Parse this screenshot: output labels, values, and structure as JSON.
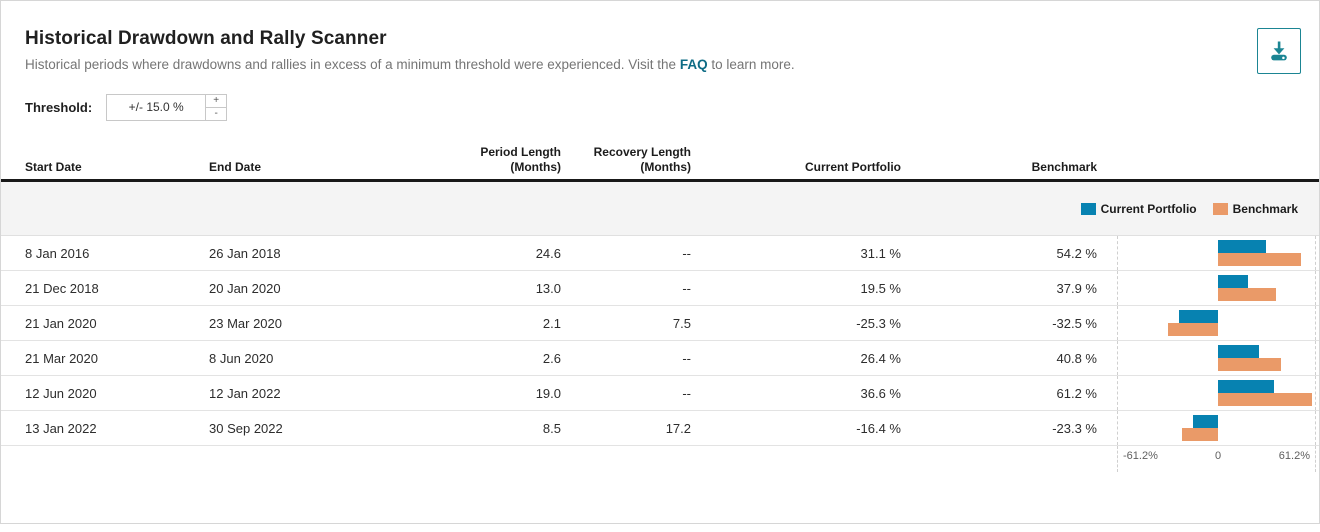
{
  "header": {
    "title": "Historical Drawdown and Rally Scanner",
    "subtitle_before": "Historical periods where drawdowns and rallies in excess of a minimum threshold were experienced. Visit the ",
    "faq_link_text": "FAQ",
    "subtitle_after": " to learn more."
  },
  "threshold": {
    "label": "Threshold:",
    "value": "+/- 15.0 %",
    "increment": "+",
    "decrement": "-"
  },
  "table": {
    "columns": [
      {
        "id": "start-date",
        "line1": "Start Date",
        "line2": "",
        "align": "left"
      },
      {
        "id": "end-date",
        "line1": "End Date",
        "line2": "",
        "align": "left"
      },
      {
        "id": "period-length",
        "line1": "Period Length",
        "line2": "(Months)",
        "align": "right"
      },
      {
        "id": "recovery-length",
        "line1": "Recovery Length",
        "line2": "(Months)",
        "align": "right"
      },
      {
        "id": "current-portfolio",
        "line1": "Current Portfolio",
        "line2": "",
        "align": "right"
      },
      {
        "id": "benchmark",
        "line1": "Benchmark",
        "line2": "",
        "align": "right"
      }
    ],
    "rows": [
      [
        "8 Jan 2016",
        "26 Jan 2018",
        "24.6",
        "--",
        "31.1 %",
        "54.2 %"
      ],
      [
        "21 Dec 2018",
        "20 Jan 2020",
        "13.0",
        "--",
        "19.5 %",
        "37.9 %"
      ],
      [
        "21 Jan 2020",
        "23 Mar 2020",
        "2.1",
        "7.5",
        "-25.3 %",
        "-32.5 %"
      ],
      [
        "21 Mar 2020",
        "8 Jun 2020",
        "2.6",
        "--",
        "26.4 %",
        "40.8 %"
      ],
      [
        "12 Jun 2020",
        "12 Jan 2022",
        "19.0",
        "--",
        "36.6 %",
        "61.2 %"
      ],
      [
        "13 Jan 2022",
        "30 Sep 2022",
        "8.5",
        "17.2",
        "-16.4 %",
        "-23.3 %"
      ]
    ]
  },
  "chart_data": {
    "type": "bar",
    "orientation": "horizontal",
    "categories": [
      "8 Jan 2016 - 26 Jan 2018",
      "21 Dec 2018 - 20 Jan 2020",
      "21 Jan 2020 - 23 Mar 2020",
      "21 Mar 2020 - 8 Jun 2020",
      "12 Jun 2020 - 12 Jan 2022",
      "13 Jan 2022 - 30 Sep 2022"
    ],
    "series": [
      {
        "name": "Current Portfolio",
        "color": "#0782b1",
        "values": [
          31.1,
          19.5,
          -25.3,
          26.4,
          36.6,
          -16.4
        ]
      },
      {
        "name": "Benchmark",
        "color": "#ea9a68",
        "values": [
          54.2,
          37.9,
          -32.5,
          40.8,
          61.2,
          -23.3
        ]
      }
    ],
    "unit": "%",
    "xlim": [
      -61.2,
      61.2
    ],
    "x_ticks": [
      "-61.2%",
      "0",
      "61.2%"
    ],
    "legend_position": "top-right",
    "grid": false
  },
  "colors": {
    "accent_teal": "#1b8593",
    "faq_link": "#0e6c85",
    "bar_blue": "#0782b1",
    "bar_orange": "#ea9a68",
    "header_rule": "#191919",
    "band_gray": "#f4f4f4"
  }
}
